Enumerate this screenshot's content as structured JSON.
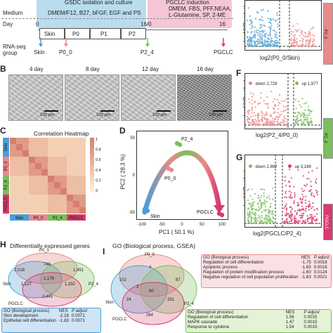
{
  "panelA": {
    "header_culture": "GSDC isolation and culture",
    "header_induction": "PGCLC induction",
    "medium_label": "Medium",
    "medium_culture": "DMEM/F12, B27, bFGF, EGF and PS",
    "medium_induction": "DMEM, FBS, PFF,NEAA, L-Glutamine, SP, 2-ME",
    "day_label": "Day",
    "day_start": "0",
    "day_mid": "16/0",
    "day_end": "16",
    "stages": [
      "Skin",
      "P0",
      "P1",
      "P2"
    ],
    "rnaseq_label": "RNA-seq group",
    "samples": [
      "Skin",
      "P0_0",
      "P2_4",
      "PGCLC"
    ]
  },
  "panelB": {
    "letter": "B",
    "days": [
      "4 day",
      "8 day",
      "12 day",
      "16 day"
    ],
    "scale": "100 μm"
  },
  "panelC": {
    "letter": "C",
    "title": "Correlation Heatmap",
    "groups": [
      "Skin",
      "P0_0",
      "P2_4",
      "PGCLC"
    ],
    "group_colors": [
      "#4a9fd4",
      "#e88a8a",
      "#7bbf5c",
      "#d63a6e"
    ],
    "legend_ticks": [
      "1",
      "0.8",
      "0.6",
      "0.4",
      "0.2",
      "0"
    ]
  },
  "panelD": {
    "letter": "D",
    "ylabel": "PC2 ( 28.3 %)",
    "xlabel": "PC1 ( 50.1 %)",
    "x_ticks": [
      "-100",
      "-50",
      "0",
      "50",
      "100"
    ],
    "y_ticks": [
      "50",
      "0",
      "-50"
    ],
    "points": [
      "Skin",
      "P0_0",
      "P2_4",
      "PGCLC"
    ]
  },
  "panelE": {
    "ylabel": "-log10(P-value)",
    "xlabel": "log2(P0_0/Skin)",
    "side_label": "P0_0"
  },
  "panelF": {
    "letter": "F",
    "down": "down 2,728",
    "up": "up 1,977",
    "ylabel": "-log10(P-value)",
    "xlabel": "log2(P2_4/P0_0)",
    "side_label": "P2_4"
  },
  "panelG": {
    "letter": "G",
    "down": "down 2,892",
    "up": "up 3,188",
    "ylabel": "-log10(P-value)",
    "xlabel": "log2(PGCLC/P2_4)",
    "side_label": "PGCLC"
  },
  "panelH": {
    "letter": "H",
    "title": "Differentially expressed genes",
    "sets": [
      "P0_0",
      "Skin",
      "P2_4",
      "PGCLC"
    ],
    "counts": {
      "skin_only": "2,018",
      "p00_only": "746",
      "p24_only": "1,451",
      "skin_p00": "1,127",
      "center": "1,176",
      "p24_p00": "1,332",
      "pgclc": "2,445"
    },
    "go_title": "GO (Biological process)",
    "go_headers": [
      "NES",
      "P adjust"
    ],
    "go_rows": [
      {
        "term": "Skin development",
        "nes": "-2.16",
        "p": "0.0071"
      },
      {
        "term": "Epithelial cell differentiation",
        "nes": "-1.83",
        "p": "0.0071"
      }
    ]
  },
  "panelI": {
    "letter": "I",
    "title": "GO (Biological process, GSEA)",
    "sets": [
      "P0_0",
      "Skin",
      "P2_4",
      "PGCLC"
    ],
    "counts": {
      "skin": "102",
      "p00": "4",
      "p24": "87",
      "center": "60",
      "a": "3",
      "b": "24",
      "c": "331",
      "pgclc": "264"
    },
    "go_top_title": "GO (Biological process)",
    "go_top_headers": [
      "NES",
      "P adjust"
    ],
    "go_top_rows": [
      {
        "term": "Regulation of cell differentiation",
        "nes": "-1.75",
        "p": "0.0018"
      },
      {
        "term": "Apoptotic process",
        "nes": "-1.65",
        "p": "0.0018"
      },
      {
        "term": "Regulation of protein modification process",
        "nes": "-1.60",
        "p": "0.0124"
      },
      {
        "term": "Negative regulation of cell population proliferation",
        "nes": "-1.63",
        "p": "0.0021"
      }
    ],
    "go_bottom_title": "GO (Biological process)",
    "go_bottom_headers": [
      "NES",
      "P adjust"
    ],
    "go_bottom_rows": [
      {
        "term": "Regulation of cell differentiation",
        "nes": "1.56",
        "p": "0.0015"
      },
      {
        "term": "MAPK cascade",
        "nes": "1.47",
        "p": "0.0015"
      },
      {
        "term": "Response to cytokine",
        "nes": "1.54",
        "p": "0.0015"
      }
    ]
  },
  "colors": {
    "skin": "#4a9fd4",
    "p00": "#e88a8a",
    "p24": "#7bbf5c",
    "pgclc": "#d63a6e",
    "culture_bg": "#b9dcef",
    "induction_bg": "#f5c6d8"
  }
}
